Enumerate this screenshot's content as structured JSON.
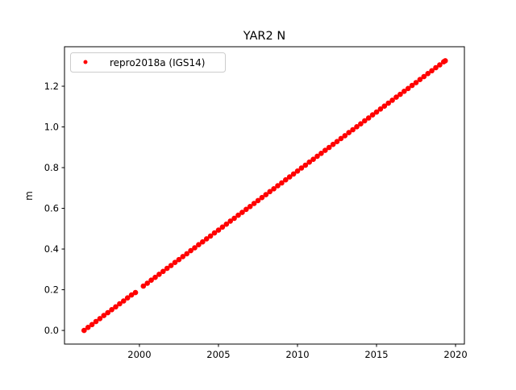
{
  "chart_data": {
    "type": "scatter",
    "title": "YAR2 N",
    "xlabel": "",
    "ylabel": "m",
    "xlim": [
      1995.26,
      2020.56
    ],
    "ylim": [
      -0.067,
      1.394
    ],
    "xticks": [
      2000,
      2005,
      2010,
      2015,
      2020
    ],
    "xtick_labels": [
      "2000",
      "2005",
      "2010",
      "2015",
      "2020"
    ],
    "yticks": [
      0.0,
      0.2,
      0.4,
      0.6,
      0.8,
      1.0,
      1.2
    ],
    "ytick_labels": [
      "0.0",
      "0.2",
      "0.4",
      "0.6",
      "0.8",
      "1.0",
      "1.2"
    ],
    "grid": false,
    "legend_position": "top-left",
    "series": [
      {
        "name": "repro2018a (IGS14)",
        "color": "#ff0000",
        "marker": "dot",
        "x": [
          1996.5,
          1996.75,
          1997,
          1997.25,
          1997.5,
          1997.75,
          1998,
          1998.25,
          1998.5,
          1998.75,
          1999,
          1999.25,
          1999.5,
          1999.75,
          2000.25,
          2000.5,
          2000.75,
          2001,
          2001.25,
          2001.5,
          2001.75,
          2002,
          2002.25,
          2002.5,
          2002.75,
          2003,
          2003.25,
          2003.5,
          2003.75,
          2004,
          2004.25,
          2004.5,
          2004.75,
          2005,
          2005.25,
          2005.5,
          2005.75,
          2006,
          2006.25,
          2006.5,
          2006.75,
          2007,
          2007.25,
          2007.5,
          2007.75,
          2008,
          2008.25,
          2008.5,
          2008.75,
          2009,
          2009.25,
          2009.5,
          2009.75,
          2010,
          2010.25,
          2010.5,
          2010.75,
          2011,
          2011.25,
          2011.5,
          2011.75,
          2012,
          2012.25,
          2012.5,
          2012.75,
          2013,
          2013.25,
          2013.5,
          2013.75,
          2014,
          2014.25,
          2014.5,
          2014.75,
          2015,
          2015.25,
          2015.5,
          2015.75,
          2016,
          2016.25,
          2016.5,
          2016.75,
          2017,
          2017.25,
          2017.5,
          2017.75,
          2018,
          2018.25,
          2018.5,
          2018.75,
          2019,
          2019.25,
          2019.35
        ],
        "y": [
          0.0,
          0.015,
          0.029,
          0.044,
          0.058,
          0.073,
          0.087,
          0.102,
          0.116,
          0.131,
          0.145,
          0.16,
          0.174,
          0.186,
          0.218,
          0.232,
          0.247,
          0.261,
          0.276,
          0.29,
          0.305,
          0.319,
          0.334,
          0.348,
          0.363,
          0.377,
          0.392,
          0.406,
          0.421,
          0.435,
          0.45,
          0.464,
          0.479,
          0.493,
          0.508,
          0.522,
          0.537,
          0.551,
          0.566,
          0.58,
          0.595,
          0.609,
          0.624,
          0.638,
          0.653,
          0.667,
          0.682,
          0.696,
          0.711,
          0.725,
          0.74,
          0.754,
          0.769,
          0.783,
          0.798,
          0.812,
          0.827,
          0.841,
          0.856,
          0.87,
          0.885,
          0.899,
          0.914,
          0.928,
          0.943,
          0.957,
          0.972,
          0.986,
          1.001,
          1.015,
          1.03,
          1.044,
          1.059,
          1.073,
          1.088,
          1.102,
          1.117,
          1.131,
          1.146,
          1.16,
          1.175,
          1.189,
          1.204,
          1.218,
          1.233,
          1.247,
          1.262,
          1.276,
          1.291,
          1.305,
          1.32,
          1.325
        ]
      }
    ]
  }
}
